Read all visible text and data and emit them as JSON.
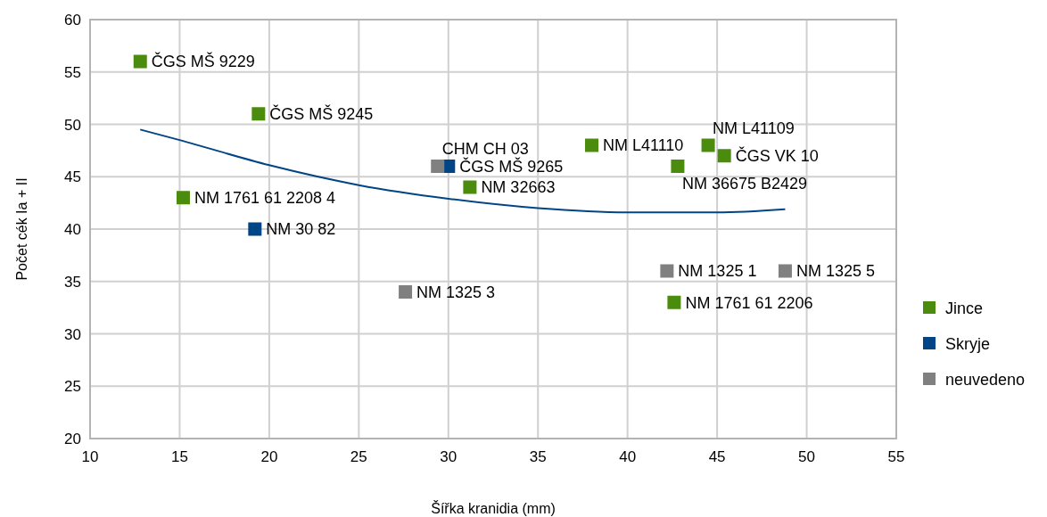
{
  "chart_data": {
    "type": "scatter",
    "xlabel": "Šířka kranidia (mm)",
    "ylabel": "Počet cék Ia + II",
    "xlim": [
      10,
      55
    ],
    "xticks": [
      10,
      15,
      20,
      25,
      30,
      35,
      40,
      45,
      50,
      55
    ],
    "ylim": [
      20,
      60
    ],
    "yticks": [
      20,
      25,
      30,
      35,
      40,
      45,
      50,
      55,
      60
    ],
    "grid": true,
    "legend": "right",
    "marker": "square",
    "series": [
      {
        "name": "Jince",
        "color": "#4b8b0e",
        "x": [
          12.8,
          19.4,
          15.2,
          31.2,
          38.0,
          42.8,
          44.5,
          45.4,
          42.6
        ],
        "values": [
          56,
          51,
          43,
          44,
          48,
          46,
          48,
          47,
          33
        ]
      },
      {
        "name": "Skryje",
        "color": "#004586",
        "x": [
          19.2,
          30.0
        ],
        "values": [
          40,
          46
        ]
      },
      {
        "name": "neuvedeno",
        "color": "#808080",
        "x": [
          27.6,
          29.4,
          42.2,
          48.8
        ],
        "values": [
          34,
          46,
          36,
          36
        ]
      },
      {
        "type": "line",
        "marker": "none",
        "color": "#004586",
        "x": [
          12.8,
          15,
          20,
          25,
          30,
          35,
          40,
          45,
          48.8
        ],
        "values": [
          49.5,
          48.5,
          46.1,
          44.2,
          42.9,
          42.0,
          41.6,
          41.6,
          41.9
        ]
      }
    ],
    "annotations": [
      {
        "text": "ČGS MŠ 9229",
        "x": 12.8,
        "y": 56
      },
      {
        "text": "ČGS MŠ 9245",
        "x": 19.4,
        "y": 51
      },
      {
        "text": "NM 1761 61 2208 4",
        "x": 15.2,
        "y": 43
      },
      {
        "text": "NM 30 82",
        "x": 19.2,
        "y": 40
      },
      {
        "text": "NM 1325 3",
        "x": 27.6,
        "y": 34
      },
      {
        "text": "ČGS MŠ 9265",
        "x": 30.0,
        "y": 46
      },
      {
        "text": "CHM CH 03",
        "x": 29.4,
        "y": 46
      },
      {
        "text": "NM 32663",
        "x": 31.2,
        "y": 44
      },
      {
        "text": "NM L41110",
        "x": 38.0,
        "y": 48
      },
      {
        "text": "ČGS VK 10",
        "x": 45.4,
        "y": 47
      },
      {
        "text": "NM L41109",
        "x": 44.5,
        "y": 48
      },
      {
        "text": "NM 36675 B2429",
        "x": 42.8,
        "y": 46
      },
      {
        "text": "NM 1325 1",
        "x": 42.2,
        "y": 36
      },
      {
        "text": "NM 1325 5",
        "x": 48.8,
        "y": 36
      },
      {
        "text": "NM 1761 61 2206",
        "x": 42.6,
        "y": 33
      }
    ]
  }
}
